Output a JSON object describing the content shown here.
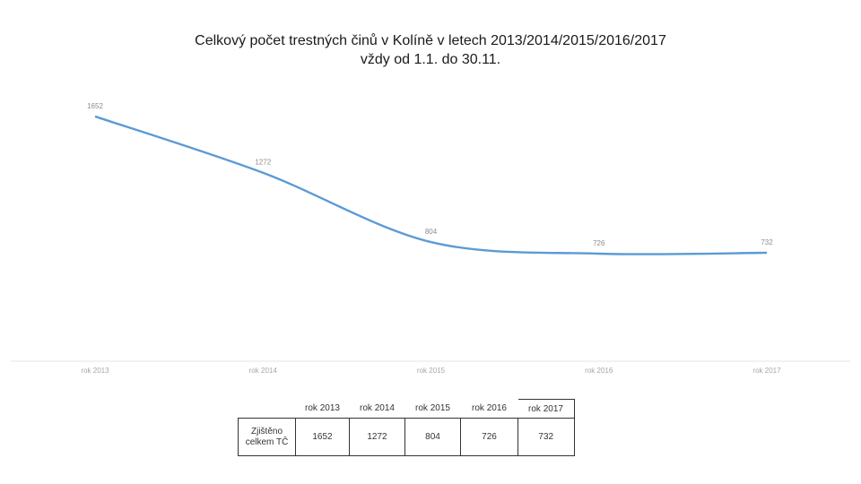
{
  "title_line1": "Celkový počet trestných činů v Kolíně v letech 2013/2014/2015/2016/2017",
  "title_line2": "vždy od 1.1. do 30.11.",
  "chart_data": {
    "type": "line",
    "categories": [
      "rok 2013",
      "rok 2014",
      "rok 2015",
      "rok 2016",
      "rok 2017"
    ],
    "series": [
      {
        "values": [
          1652,
          1272,
          804,
          726,
          732
        ]
      }
    ],
    "ylim": [
      0,
      1700
    ],
    "grid": false,
    "line_color": "#5b9bd5"
  },
  "table": {
    "headers": [
      "rok 2013",
      "rok 2014",
      "rok 2015",
      "rok 2016",
      "rok 2017"
    ],
    "row_label_line1": "Zjištěno",
    "row_label_line2": "celkem TČ",
    "values": [
      "1652",
      "1272",
      "804",
      "726",
      "732"
    ]
  }
}
